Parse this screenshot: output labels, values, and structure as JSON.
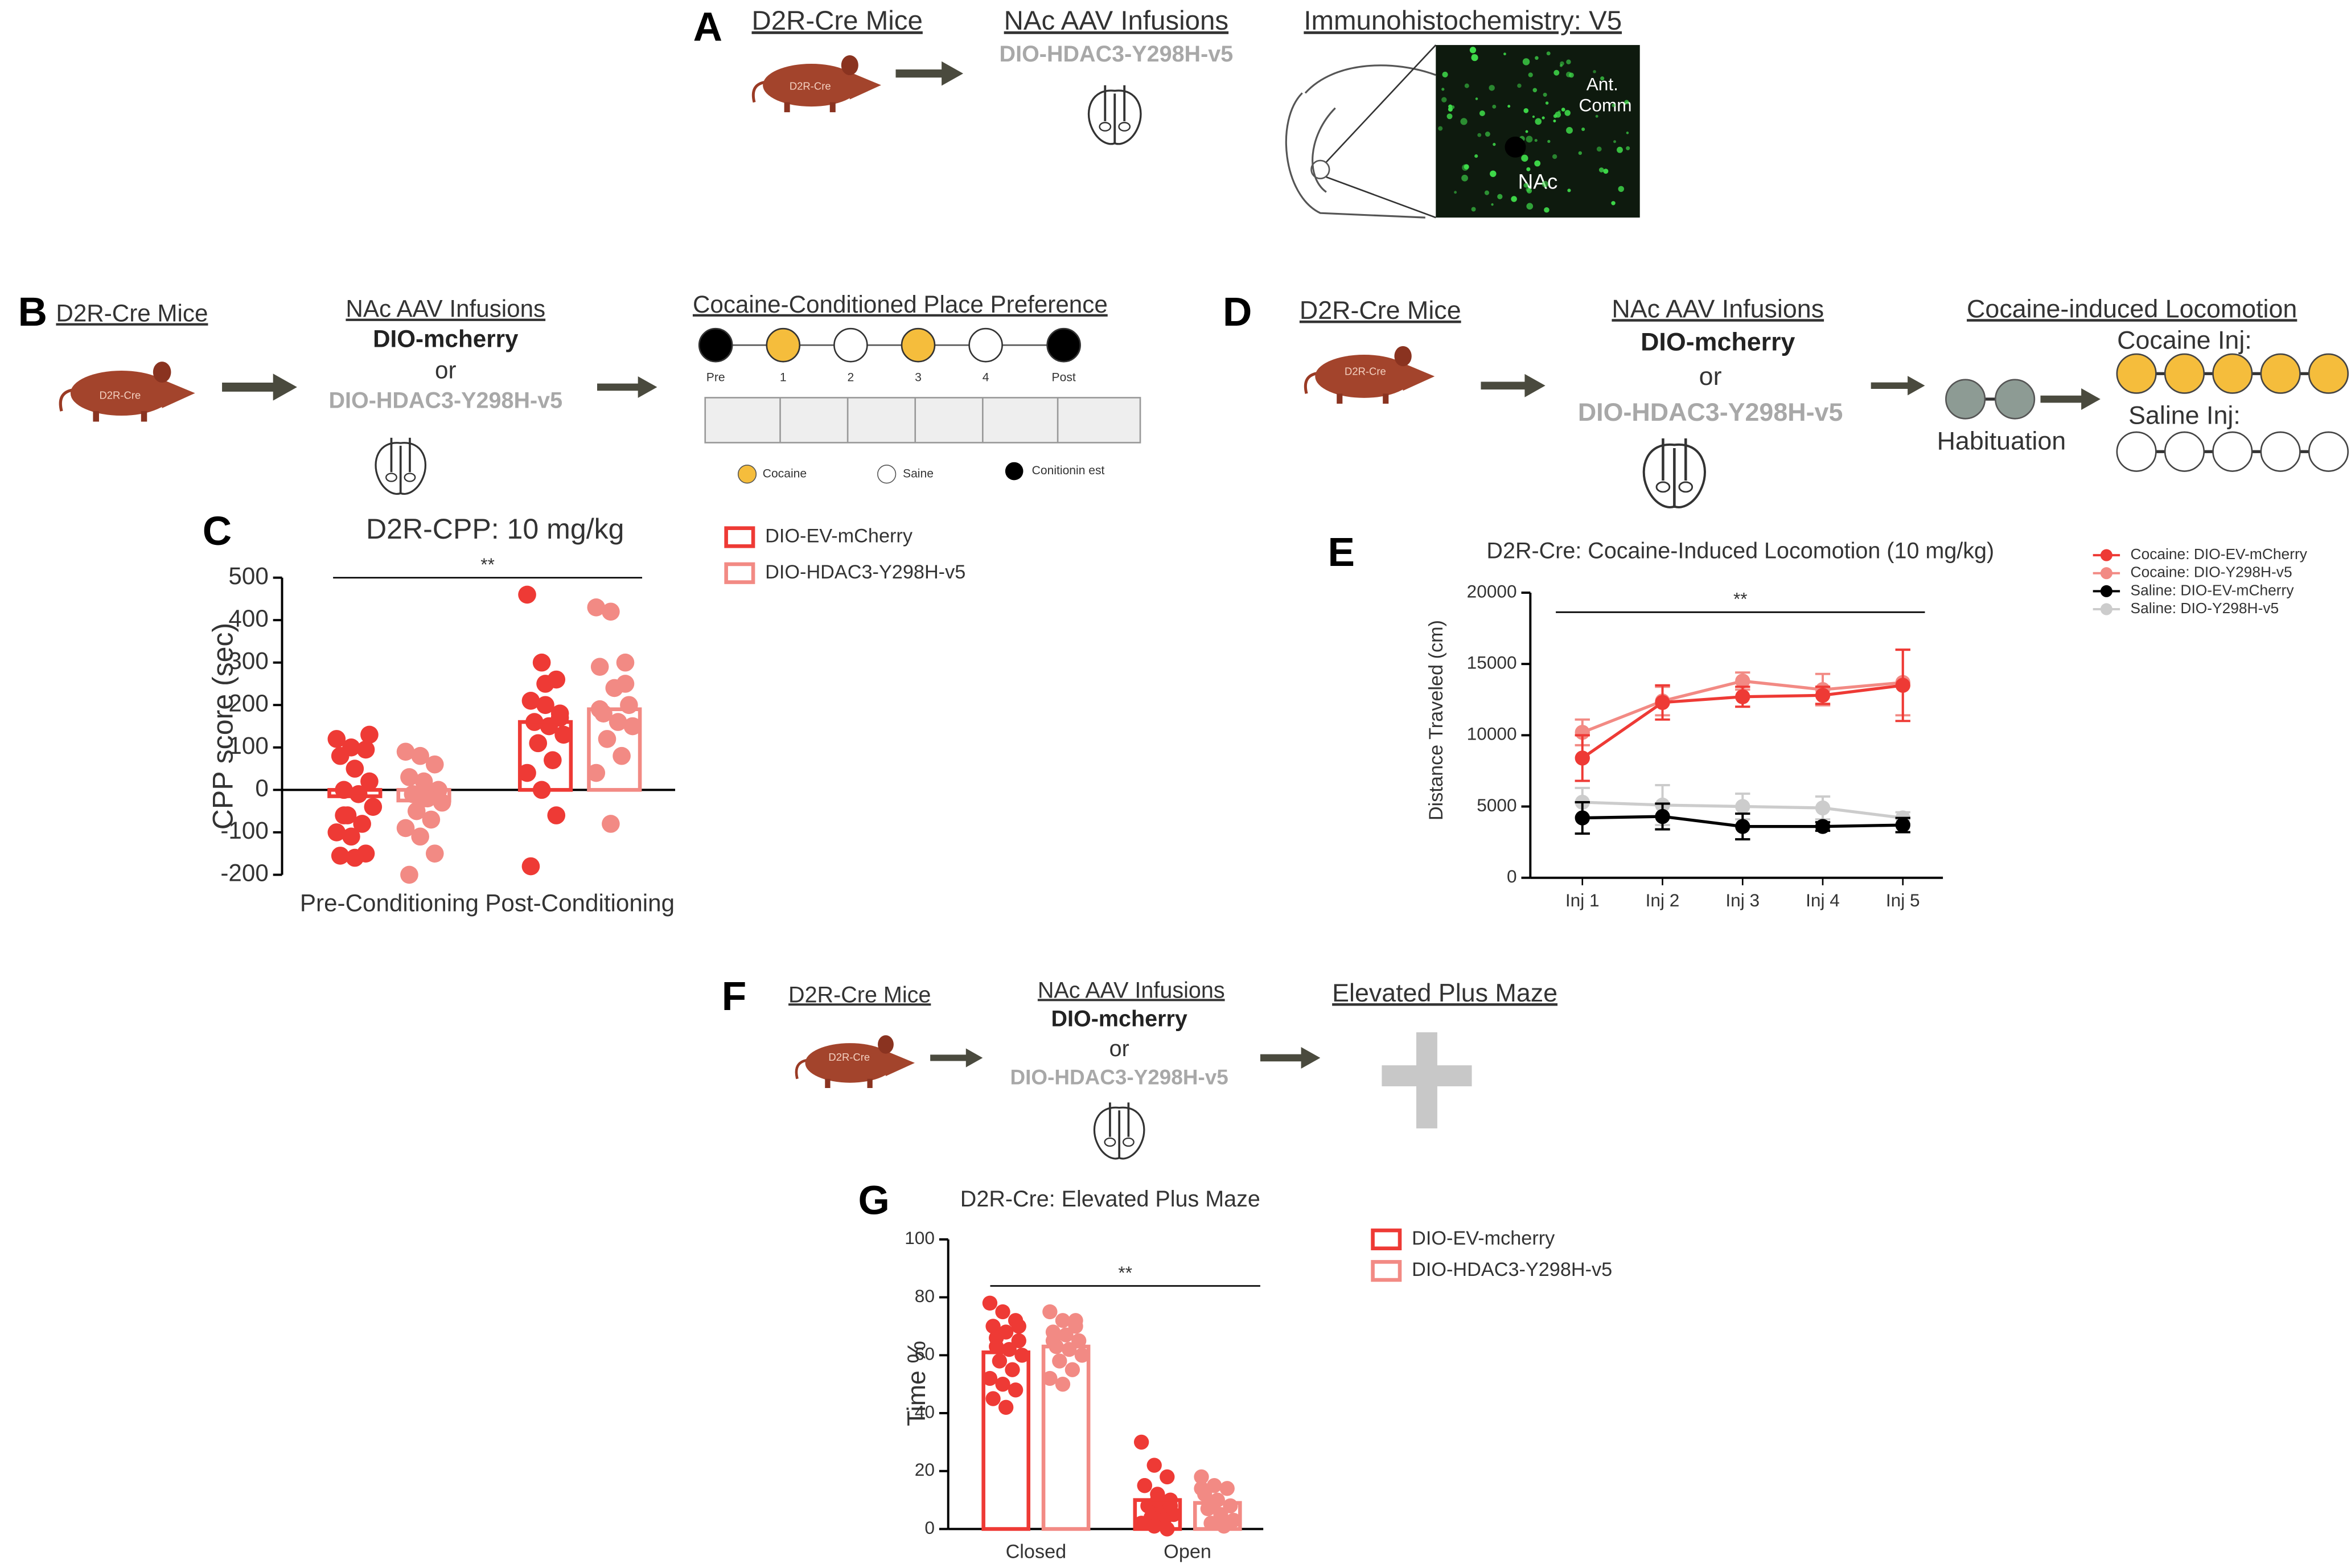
{
  "panel_a": {
    "letter": "A",
    "mouse_title": "D2R-Cre Mice",
    "mouse_label": "D2R-Cre",
    "infusion_title": "NAc AAV Infusions",
    "virus": "DIO-HDAC3-Y298H-v5",
    "ihc_title": "Immunohistochemistry: V5",
    "region_1": "Ant.",
    "region_1b": "Comm",
    "region_2": "NAc"
  },
  "panel_b": {
    "letter": "B",
    "mouse_title": "D2R-Cre Mice",
    "mouse_label": "D2R-Cre",
    "infusion_title": "NAc AAV Infusions",
    "virus_1": "DIO-mcherry",
    "or": "or",
    "virus_2": "DIO-HDAC3-Y298H-v5",
    "cpp_title": "Cocaine-Conditioned Place Preference",
    "timeline": [
      "Pre",
      "1",
      "2",
      "3",
      "4",
      "Post"
    ],
    "legend": [
      "Cocaine",
      "Saine",
      "Conitionin est"
    ]
  },
  "panel_d": {
    "letter": "D",
    "mouse_title": "D2R-Cre Mice",
    "mouse_label": "D2R-Cre",
    "infusion_title": "NAc AAV Infusions",
    "virus_1": "DIO-mcherry",
    "or": "or",
    "virus_2": "DIO-HDAC3-Y298H-v5",
    "locomotion_title": "Cocaine-induced Locomotion",
    "cocaine_label": "Cocaine Inj:",
    "saline_label": "Saline Inj:",
    "habituation": "Habituation"
  },
  "panel_f": {
    "letter": "F",
    "mouse_title": "D2R-Cre Mice",
    "mouse_label": "D2R-Cre",
    "infusion_title": "NAc AAV Infusions",
    "virus_1": "DIO-mcherry",
    "or": "or",
    "virus_2": "DIO-HDAC3-Y298H-v5",
    "epm_title": "Elevated Plus Maze"
  },
  "chart_data": [
    {
      "type": "bar",
      "panel": "C",
      "title": "D2R-CPP: 10 mg/kg",
      "y_label": "CPP score (sec)",
      "annotation": "**",
      "categories": [
        "Pre-Conditioning",
        "Post-Conditioning"
      ],
      "series": [
        {
          "name": "DIO-EV-mCherry",
          "color": "#ee3a35",
          "values": [
            -15,
            160
          ],
          "points": [
            [
              120,
              100,
              95,
              80,
              50,
              20,
              0,
              -10,
              -40,
              -60,
              -80,
              -100,
              -110,
              -150,
              -155,
              -160,
              130,
              -60
            ],
            [
              460,
              300,
              260,
              210,
              200,
              180,
              160,
              150,
              130,
              110,
              70,
              40,
              0,
              -60,
              -180,
              250,
              170
            ]
          ]
        },
        {
          "name": "DIO-HDAC3-Y298H-v5",
          "color": "#f28a84",
          "values": [
            -25,
            190
          ],
          "points": [
            [
              90,
              80,
              60,
              30,
              20,
              0,
              -10,
              -20,
              -30,
              -50,
              -70,
              -90,
              -110,
              -150,
              -200,
              -20
            ],
            [
              430,
              420,
              300,
              290,
              240,
              200,
              180,
              160,
              150,
              120,
              80,
              40,
              -80,
              250,
              190
            ]
          ]
        }
      ],
      "ylim": [
        -200,
        500
      ],
      "yticks": [
        -200,
        -100,
        0,
        100,
        200,
        300,
        400,
        500
      ]
    },
    {
      "type": "line",
      "panel": "E",
      "title": "D2R-Cre: Cocaine-Induced Locomotion (10 mg/kg)",
      "y_label": "Distance  Traveled (cm)",
      "annotation": "**",
      "categories": [
        "Inj 1",
        "Inj 2",
        "Inj 3",
        "Inj 4",
        "Inj 5"
      ],
      "series": [
        {
          "name": "Cocaine: DIO-EV-mCherry",
          "color": "#ee3a35",
          "values": [
            8400,
            12300,
            12700,
            12800,
            13500
          ],
          "errors": [
            1600,
            1200,
            700,
            600,
            2500
          ]
        },
        {
          "name": "Cocaine: DIO-Y298H-v5",
          "color": "#f28a84",
          "values": [
            10200,
            12400,
            13800,
            13200,
            13700
          ],
          "errors": [
            900,
            1000,
            600,
            1100,
            2300
          ]
        },
        {
          "name": "Saline: DIO-EV-mCherry",
          "color": "#000000",
          "values": [
            4200,
            4300,
            3600,
            3600,
            3700
          ],
          "errors": [
            1100,
            900,
            900,
            300,
            500
          ]
        },
        {
          "name": "Saline: DIO-Y298H-v5",
          "color": "#cccccc",
          "values": [
            5300,
            5100,
            5000,
            4900,
            4200
          ],
          "errors": [
            1000,
            1400,
            900,
            800,
            400
          ]
        }
      ],
      "ylim": [
        0,
        20000
      ],
      "yticks": [
        0,
        5000,
        10000,
        15000,
        20000
      ]
    },
    {
      "type": "bar",
      "panel": "G",
      "title": "D2R-Cre: Elevated Plus Maze",
      "y_label": "Time %",
      "annotation": "**",
      "categories": [
        "Closed",
        "Open"
      ],
      "series": [
        {
          "name": "DIO-EV-mcherry",
          "color": "#ee3a35",
          "values": [
            61,
            10
          ],
          "points": [
            [
              78,
              75,
              72,
              70,
              68,
              65,
              63,
              62,
              60,
              58,
              55,
              52,
              50,
              48,
              45,
              42,
              70,
              66
            ],
            [
              30,
              22,
              18,
              15,
              12,
              10,
              8,
              6,
              5,
              4,
              3,
              2,
              1,
              0,
              15,
              10,
              8
            ]
          ]
        },
        {
          "name": "DIO-HDAC3-Y298H-v5",
          "color": "#f28a84",
          "values": [
            63,
            9
          ],
          "points": [
            [
              75,
              72,
              70,
              68,
              67,
              65,
              63,
              62,
              60,
              58,
              55,
              52,
              50,
              72,
              65
            ],
            [
              18,
              15,
              14,
              12,
              10,
              8,
              7,
              5,
              3,
              2,
              1,
              14,
              9
            ]
          ]
        }
      ],
      "ylim": [
        0,
        100
      ],
      "yticks": [
        0,
        20,
        40,
        60,
        80,
        100
      ]
    }
  ]
}
